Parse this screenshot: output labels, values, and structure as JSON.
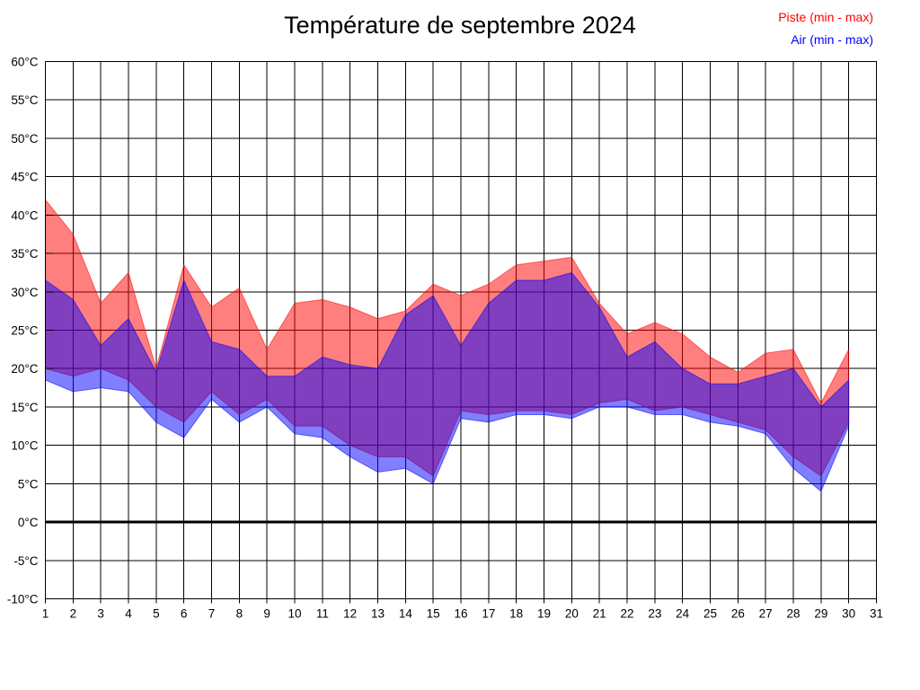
{
  "title": "Température de septembre 2024",
  "legend": [
    {
      "id": "piste",
      "label": "Piste (min - max)",
      "color": "#ff0000"
    },
    {
      "id": "air",
      "label": "Air (min - max)",
      "color": "#0000ff"
    }
  ],
  "chart_data": {
    "type": "area",
    "subtype": "min-max-range-bands",
    "title": "Température de septembre 2024",
    "xlabel": "",
    "ylabel": "",
    "xlim": [
      1,
      31
    ],
    "ylim": [
      -10,
      60
    ],
    "grid": true,
    "legend_position": "top-right-outside",
    "zero_line_value": 0,
    "x_ticks": [
      1,
      2,
      3,
      4,
      5,
      6,
      7,
      8,
      9,
      10,
      11,
      12,
      13,
      14,
      15,
      16,
      17,
      18,
      19,
      20,
      21,
      22,
      23,
      24,
      25,
      26,
      27,
      28,
      29,
      30,
      31
    ],
    "y_ticks": [
      {
        "value": 60,
        "label": "60°C"
      },
      {
        "value": 55,
        "label": "55°C"
      },
      {
        "value": 50,
        "label": "50°C"
      },
      {
        "value": 45,
        "label": "45°C"
      },
      {
        "value": 40,
        "label": "40°C"
      },
      {
        "value": 35,
        "label": "35°C"
      },
      {
        "value": 30,
        "label": "30°C"
      },
      {
        "value": 25,
        "label": "25°C"
      },
      {
        "value": 20,
        "label": "20°C"
      },
      {
        "value": 15,
        "label": "15°C"
      },
      {
        "value": 10,
        "label": "10°C"
      },
      {
        "value": 5,
        "label": "5°C"
      },
      {
        "value": 0,
        "label": "0°C"
      },
      {
        "value": -5,
        "label": "-5°C"
      },
      {
        "value": -10,
        "label": "-10°C"
      }
    ],
    "days": [
      1,
      2,
      3,
      4,
      5,
      6,
      7,
      8,
      9,
      10,
      11,
      12,
      13,
      14,
      15,
      16,
      17,
      18,
      19,
      20,
      21,
      22,
      23,
      24,
      25,
      26,
      27,
      28,
      29,
      30
    ],
    "series": [
      {
        "name": "Piste (min - max)",
        "fill": "rgba(255,0,0,0.5)",
        "stroke": "rgba(255,0,0,0.55)",
        "min": [
          20,
          19,
          20,
          18.5,
          15,
          13,
          17,
          14,
          16,
          12.5,
          12.5,
          10,
          8.5,
          8.5,
          6,
          14.5,
          14,
          14.5,
          14.5,
          14,
          15.5,
          16,
          14.5,
          15,
          14,
          13,
          12,
          8.5,
          6,
          13
        ],
        "max": [
          42,
          37.5,
          28.5,
          32.5,
          20,
          33.5,
          28,
          30.5,
          22.5,
          28.5,
          29,
          28,
          26.5,
          27.5,
          31,
          29.5,
          31,
          33.5,
          34,
          34.5,
          28.5,
          24.5,
          26,
          24.5,
          21.5,
          19.5,
          22,
          22.5,
          15.5,
          22.5
        ]
      },
      {
        "name": "Air (min - max)",
        "fill": "rgba(0,0,255,0.5)",
        "stroke": "rgba(0,0,255,0.55)",
        "min": [
          18.5,
          17,
          17.5,
          17,
          13,
          11,
          16,
          13,
          15,
          11.5,
          11,
          8.5,
          6.5,
          7,
          5,
          13.5,
          13,
          14,
          14,
          13.5,
          15,
          15,
          14,
          14,
          13,
          12.5,
          11.5,
          7,
          4,
          12.5
        ],
        "max": [
          31.5,
          29,
          23,
          26.5,
          19.5,
          31.5,
          23.5,
          22.5,
          19,
          19,
          21.5,
          20.5,
          20,
          27,
          29.5,
          23,
          28.5,
          31.5,
          31.5,
          32.5,
          28,
          21.5,
          23.5,
          20,
          18,
          18,
          19,
          20,
          15,
          18.5
        ]
      }
    ]
  }
}
